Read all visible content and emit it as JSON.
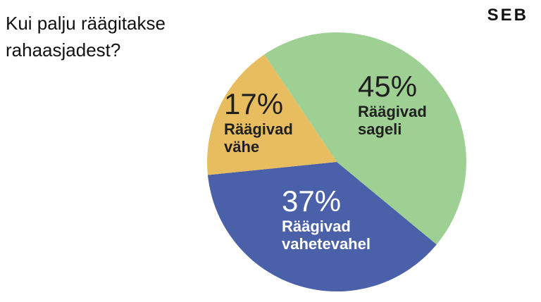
{
  "logo": "SEB",
  "chart_data": {
    "type": "pie",
    "title": "Kui palju räägitakse rahaasjadest?",
    "categories": [
      "Räägivad sageli",
      "Räägivad vahetevahel",
      "Räägivad vähe"
    ],
    "values": [
      45,
      37,
      17
    ],
    "value_labels": [
      "45%",
      "37%",
      "17%"
    ],
    "colors": [
      "#9ecf93",
      "#4a60a8",
      "#e8bd5f"
    ]
  }
}
